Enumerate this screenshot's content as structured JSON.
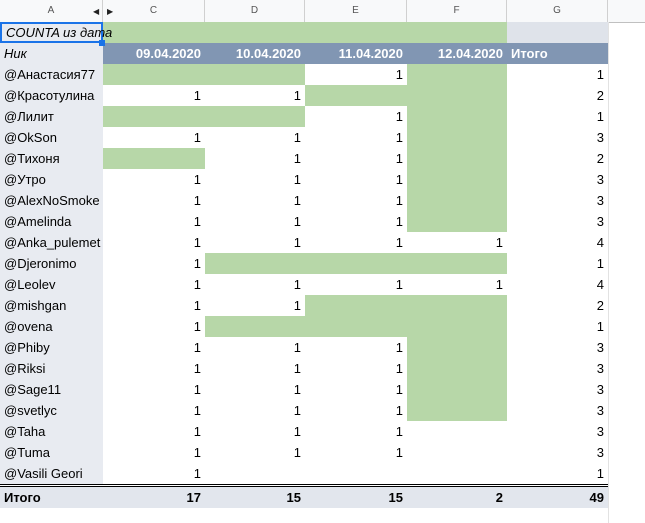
{
  "columns": [
    "A",
    "C",
    "D",
    "E",
    "F",
    "G"
  ],
  "pivot": {
    "title": "COUNTA из дата",
    "row_header": "Ник",
    "dates": [
      "09.04.2020",
      "10.04.2020",
      "11.04.2020",
      "12.04.2020"
    ],
    "total_label": "Итого",
    "rows": [
      {
        "name": "@Анастасия77",
        "vals": [
          "",
          "",
          "1",
          ""
        ],
        "total": "1"
      },
      {
        "name": "@Красотулина",
        "vals": [
          "1",
          "1",
          "",
          ""
        ],
        "total": "2"
      },
      {
        "name": "@Лилит",
        "vals": [
          "",
          "",
          "1",
          ""
        ],
        "total": "1"
      },
      {
        "name": "@OkSon",
        "vals": [
          "1",
          "1",
          "1",
          ""
        ],
        "total": "3"
      },
      {
        "name": "@Тихоня",
        "vals": [
          "",
          "1",
          "1",
          ""
        ],
        "total": "2"
      },
      {
        "name": "@Утро",
        "vals": [
          "1",
          "1",
          "1",
          ""
        ],
        "total": "3"
      },
      {
        "name": "@AlexNoSmoke",
        "vals": [
          "1",
          "1",
          "1",
          ""
        ],
        "total": "3"
      },
      {
        "name": "@Amelinda",
        "vals": [
          "1",
          "1",
          "1",
          ""
        ],
        "total": "3"
      },
      {
        "name": "@Anka_pulemet",
        "vals": [
          "1",
          "1",
          "1",
          "1"
        ],
        "total": "4"
      },
      {
        "name": "@Djeronimo",
        "vals": [
          "1",
          "",
          "",
          ""
        ],
        "total": "1"
      },
      {
        "name": "@Leolev",
        "vals": [
          "1",
          "1",
          "1",
          "1"
        ],
        "total": "4"
      },
      {
        "name": "@mishgan",
        "vals": [
          "1",
          "1",
          "",
          ""
        ],
        "total": "2"
      },
      {
        "name": "@ovena",
        "vals": [
          "1",
          "",
          "",
          ""
        ],
        "total": "1"
      },
      {
        "name": "@Phiby",
        "vals": [
          "1",
          "1",
          "1",
          ""
        ],
        "total": "3"
      },
      {
        "name": "@Riksi",
        "vals": [
          "1",
          "1",
          "1",
          ""
        ],
        "total": "3"
      },
      {
        "name": "@Sage11",
        "vals": [
          "1",
          "1",
          "1",
          ""
        ],
        "total": "3"
      },
      {
        "name": "@svetlyc",
        "vals": [
          "1",
          "1",
          "1",
          ""
        ],
        "total": "3"
      },
      {
        "name": "@Taha",
        "vals": [
          "1",
          "1",
          "1",
          ""
        ],
        "total": "3"
      },
      {
        "name": "@Tuma",
        "vals": [
          "1",
          "1",
          "1",
          ""
        ],
        "total": "3"
      },
      {
        "name": "@Vasili Geori",
        "vals": [
          "1",
          "",
          "",
          ""
        ],
        "total": "1"
      }
    ],
    "highlight": [
      [
        1,
        1,
        0,
        1
      ],
      [
        0,
        0,
        1,
        1
      ],
      [
        1,
        1,
        0,
        1
      ],
      [
        0,
        0,
        0,
        1
      ],
      [
        1,
        0,
        0,
        1
      ],
      [
        0,
        0,
        0,
        1
      ],
      [
        0,
        0,
        0,
        1
      ],
      [
        0,
        0,
        0,
        1
      ],
      [
        0,
        0,
        0,
        0
      ],
      [
        0,
        1,
        1,
        1
      ],
      [
        0,
        0,
        0,
        0
      ],
      [
        0,
        0,
        1,
        1
      ],
      [
        0,
        1,
        1,
        1
      ],
      [
        0,
        0,
        0,
        1
      ],
      [
        0,
        0,
        0,
        1
      ],
      [
        0,
        0,
        0,
        1
      ],
      [
        0,
        0,
        0,
        1
      ],
      [
        0,
        0,
        0,
        0
      ],
      [
        0,
        0,
        0,
        0
      ],
      [
        0,
        0,
        0,
        0
      ]
    ],
    "col_totals": [
      "17",
      "15",
      "15",
      "2"
    ],
    "grand_total": "49"
  },
  "colors": {
    "highlight": "#b7d7a8",
    "header": "#8196b3",
    "label": "#e8ebf1"
  }
}
